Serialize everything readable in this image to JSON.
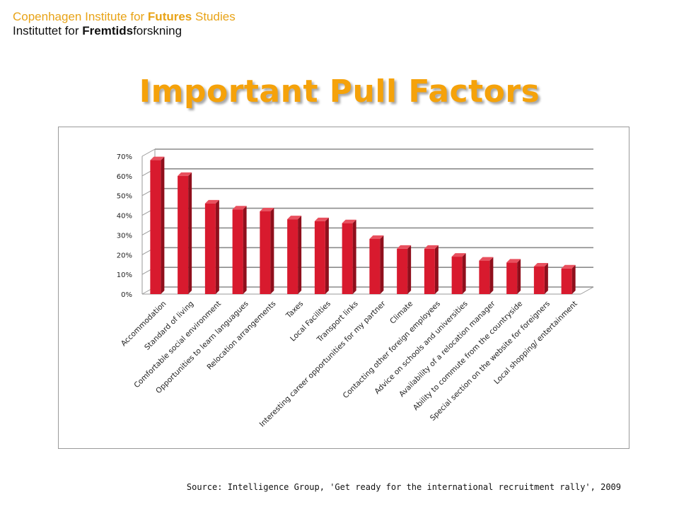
{
  "header": {
    "line1_pre": "Copenhagen Institute for ",
    "line1_bold": "Futures",
    "line1_post": " Studies",
    "line2_pre": "Instituttet for ",
    "line2_bold": "Fremtids",
    "line2_post": "forskning"
  },
  "title": "Important Pull Factors",
  "source": "Source: Intelligence Group, 'Get ready for the international recruitment rally', 2009",
  "colors": {
    "accent": "#f5a20a",
    "bar": "#d81a2e"
  },
  "chart_data": {
    "type": "bar",
    "categories": [
      "Accommodation",
      "Standard of living",
      "Comfortable social environment",
      "Opportunities to learn languagues",
      "Relocation arrangements",
      "Taxes",
      "Local Facilities",
      "Transport links",
      "Interesting career opportunities for my partner",
      "Climate",
      "Contacting other foreign employees",
      "Advice on schools and universities",
      "Availability of a relocation manager",
      "Ability to commute from the countryside",
      "Special section on the website for foreigners",
      "Local shopping/ entertainment"
    ],
    "values": [
      68,
      60,
      46,
      43,
      42,
      38,
      37,
      36,
      28,
      23,
      23,
      19,
      17,
      16,
      14,
      13
    ],
    "y_ticks": [
      "0%",
      "10%",
      "20%",
      "30%",
      "40%",
      "50%",
      "60%",
      "70%"
    ],
    "ylim": [
      0,
      70
    ],
    "grid": true,
    "title": "",
    "xlabel": "",
    "ylabel": ""
  }
}
